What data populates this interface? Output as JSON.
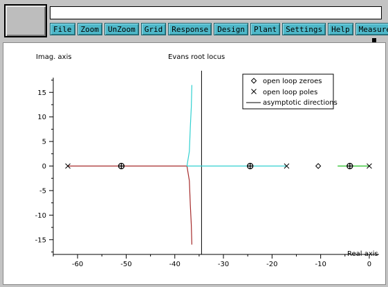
{
  "window": {
    "title_field_value": "",
    "menu": [
      "File",
      "Zoom",
      "UnZoom",
      "Grid",
      "Response",
      "Design",
      "Plant",
      "Settings",
      "Help",
      "Measure"
    ]
  },
  "chart_data": {
    "type": "line",
    "title": "Evans root locus",
    "xlabel": "Real axis",
    "ylabel": "Imag. axis",
    "xlim": [
      -65,
      2
    ],
    "ylim": [
      -18,
      18
    ],
    "xticks": [
      -60,
      -50,
      -40,
      -30,
      -20,
      -10,
      0
    ],
    "yticks": [
      -15,
      -10,
      -5,
      0,
      5,
      10,
      15
    ],
    "grid": false,
    "legend": {
      "position": "top-right",
      "entries": [
        {
          "label": "open loop zeroes",
          "marker": "diamond"
        },
        {
          "label": "open loop poles",
          "marker": "x"
        },
        {
          "label": "asymptotic directions",
          "marker": "line"
        }
      ]
    },
    "asymptote_x": -34.5,
    "open_loop_poles": [
      [
        -62,
        0
      ],
      [
        -17,
        0
      ],
      [
        0,
        0
      ]
    ],
    "open_loop_zeroes": [
      [
        -10.5,
        0
      ]
    ],
    "closed_loop_points": [
      [
        -51,
        0
      ],
      [
        -24.5,
        0
      ],
      [
        -4,
        0
      ]
    ],
    "series": [
      {
        "color": "#a52a2a",
        "points": [
          [
            -62,
            0
          ],
          [
            -37.5,
            0
          ],
          [
            -37,
            -3
          ],
          [
            -36.8,
            -8
          ],
          [
            -36.6,
            -12
          ],
          [
            -36.5,
            -16
          ]
        ]
      },
      {
        "color": "#30d0d0",
        "points": [
          [
            -17,
            0
          ],
          [
            -37.5,
            0
          ],
          [
            -37,
            3
          ],
          [
            -36.8,
            8
          ],
          [
            -36.6,
            12
          ],
          [
            -36.5,
            16.5
          ]
        ]
      },
      {
        "color": "#20c020",
        "points": [
          [
            0,
            0
          ],
          [
            -6.5,
            0
          ]
        ]
      }
    ],
    "colors": {
      "asymptote": "#000000",
      "markers": "#000000"
    }
  }
}
